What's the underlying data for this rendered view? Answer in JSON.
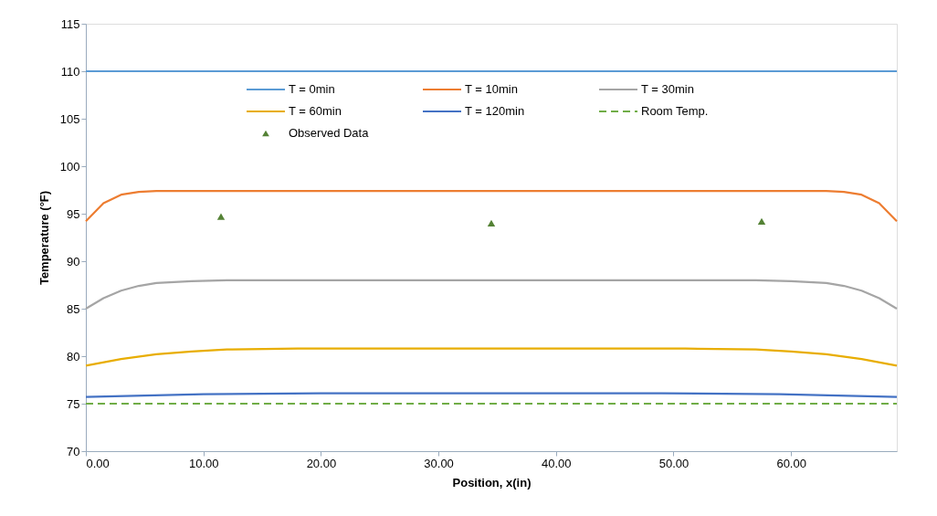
{
  "chart_data": {
    "type": "line",
    "xlabel": "Position, x(in)",
    "ylabel": "Temperature (°F)",
    "xlim": [
      0,
      69
    ],
    "ylim": [
      70,
      115
    ],
    "xticks": [
      {
        "value": 0,
        "label": "0.00"
      },
      {
        "value": 10,
        "label": "10.00"
      },
      {
        "value": 20,
        "label": "20.00"
      },
      {
        "value": 30,
        "label": "30.00"
      },
      {
        "value": 40,
        "label": "40.00"
      },
      {
        "value": 50,
        "label": "50.00"
      },
      {
        "value": 60,
        "label": "60.00"
      }
    ],
    "yticks": [
      70,
      75,
      80,
      85,
      90,
      95,
      100,
      105,
      110,
      115
    ],
    "grid": false,
    "legend": "top",
    "series": [
      {
        "name": "T = 0min",
        "color": "#5b9bd5",
        "x": [
          0,
          69
        ],
        "values": [
          110,
          110
        ]
      },
      {
        "name": "T = 10min",
        "color": "#ed7d31",
        "x": [
          0,
          1.5,
          3,
          4.5,
          6,
          9,
          60,
          63,
          64.5,
          66,
          67.5,
          69
        ],
        "values": [
          94.2,
          96.1,
          97.0,
          97.3,
          97.4,
          97.4,
          97.4,
          97.4,
          97.3,
          97.0,
          96.1,
          94.2
        ]
      },
      {
        "name": "T = 30min",
        "color": "#a5a5a5",
        "x": [
          0,
          1.5,
          3,
          4.5,
          6,
          9,
          12,
          57,
          60,
          63,
          64.5,
          66,
          67.5,
          69
        ],
        "values": [
          85.0,
          86.1,
          86.9,
          87.4,
          87.7,
          87.9,
          88.0,
          88.0,
          87.9,
          87.7,
          87.4,
          86.9,
          86.1,
          85.0
        ]
      },
      {
        "name": "T = 60min",
        "color": "#e8ad00",
        "x": [
          0,
          3,
          6,
          9,
          12,
          18,
          51,
          57,
          60,
          63,
          66,
          69
        ],
        "values": [
          79.0,
          79.7,
          80.2,
          80.5,
          80.7,
          80.8,
          80.8,
          80.7,
          80.5,
          80.2,
          79.7,
          79.0
        ]
      },
      {
        "name": "T = 120min",
        "color": "#4472c4",
        "x": [
          0,
          10,
          20,
          49,
          59,
          69
        ],
        "values": [
          75.7,
          76.0,
          76.1,
          76.1,
          76.0,
          75.7
        ]
      },
      {
        "name": "Room Temp.",
        "color": "#70ad47",
        "line_style": "dashed",
        "x": [
          0,
          69
        ],
        "values": [
          75,
          75
        ]
      },
      {
        "name": "Observed Data",
        "type": "scatter",
        "marker": "triangle",
        "color": "#548235",
        "x": [
          11.5,
          34.5,
          57.5
        ],
        "values": [
          94.7,
          94.0,
          94.2
        ]
      }
    ]
  }
}
